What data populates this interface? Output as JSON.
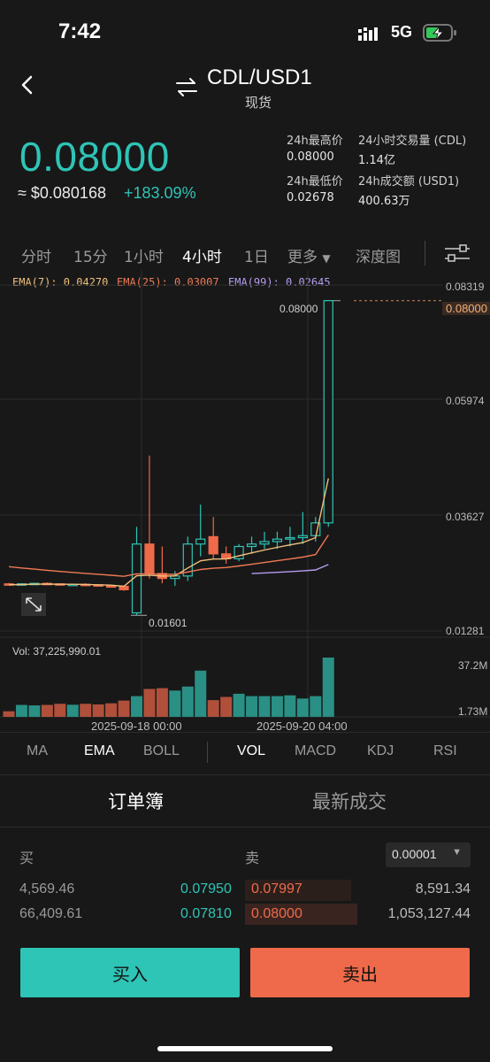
{
  "status": {
    "time": "7:42",
    "network": "5G"
  },
  "header": {
    "pair": "CDL/USD1",
    "market_type": "现货"
  },
  "price": {
    "last": "0.08000",
    "fiat": "≈ $0.080168",
    "change": "+183.09%"
  },
  "stats": {
    "high_label": "24h最高价",
    "high": "0.08000",
    "low_label": "24h最低价",
    "low": "0.02678",
    "vol_label": "24小时交易量 (CDL)",
    "vol": "1.14亿",
    "turnover_label": "24h成交额 (USD1)",
    "turnover": "400.63万"
  },
  "intervals": [
    "分时",
    "15分",
    "1小时",
    "4小时",
    "1日",
    "更多",
    "深度图"
  ],
  "active_interval": "4小时",
  "ema": {
    "ema7": "EMA(7): 0.04270",
    "ema25": "EMA(25): 0.03007",
    "ema99": "EMA(99): 0.02645"
  },
  "colors": {
    "up": "#2ec4b6",
    "down": "#ef6a4a",
    "ema7": "#f2c07d",
    "ema25": "#f07a55",
    "ema99": "#b69cf0"
  },
  "chart_data": {
    "type": "candlestick",
    "y_axis": {
      "ticks": [
        "0.08319",
        "0.05974",
        "0.03627",
        "0.01281"
      ],
      "min": 0.01281,
      "max": 0.08319
    },
    "current_price_tag": "0.08000",
    "max_label": "0.08000",
    "min_label": "0.01601",
    "x_ticks": [
      "2025-09-18 00:00",
      "2025-09-20 04:00"
    ],
    "volume": {
      "label": "Vol: 37,225,990.01",
      "max_tick": "37.2M",
      "min_tick": "1.73M"
    },
    "candles": [
      [
        0.0224,
        0.0226,
        0.0222,
        0.0223
      ],
      [
        0.0223,
        0.0225,
        0.0221,
        0.0224
      ],
      [
        0.0224,
        0.0226,
        0.0222,
        0.0225
      ],
      [
        0.0225,
        0.0227,
        0.0223,
        0.0224
      ],
      [
        0.0224,
        0.0225,
        0.0221,
        0.0222
      ],
      [
        0.0222,
        0.0224,
        0.022,
        0.0223
      ],
      [
        0.0223,
        0.0225,
        0.0221,
        0.0222
      ],
      [
        0.0222,
        0.0223,
        0.0219,
        0.022
      ],
      [
        0.022,
        0.0222,
        0.0218,
        0.0219
      ],
      [
        0.0219,
        0.022,
        0.021,
        0.0212
      ],
      [
        0.0165,
        0.034,
        0.016,
        0.0305
      ],
      [
        0.0305,
        0.0485,
        0.0235,
        0.0245
      ],
      [
        0.0245,
        0.03,
        0.0225,
        0.0235
      ],
      [
        0.0235,
        0.025,
        0.022,
        0.024
      ],
      [
        0.024,
        0.032,
        0.023,
        0.0305
      ],
      [
        0.0305,
        0.0385,
        0.028,
        0.0315
      ],
      [
        0.032,
        0.036,
        0.0275,
        0.0285
      ],
      [
        0.0285,
        0.03,
        0.0265,
        0.0275
      ],
      [
        0.0275,
        0.0305,
        0.027,
        0.03
      ],
      [
        0.03,
        0.032,
        0.0285,
        0.0305
      ],
      [
        0.0305,
        0.033,
        0.0295,
        0.031
      ],
      [
        0.031,
        0.033,
        0.0295,
        0.0315
      ],
      [
        0.0315,
        0.034,
        0.03,
        0.0318
      ],
      [
        0.0318,
        0.037,
        0.0305,
        0.0322
      ],
      [
        0.0322,
        0.036,
        0.031,
        0.0348
      ],
      [
        0.0348,
        0.08,
        0.034,
        0.08
      ]
    ],
    "volumes": [
      3.5,
      7.5,
      7.2,
      7.5,
      8.2,
      7.6,
      8.2,
      7.8,
      8.5,
      10.2,
      13.0,
      17.5,
      18.0,
      16.5,
      19.0,
      29.0,
      10.5,
      12.5,
      14.5,
      13.0,
      13.0,
      13.0,
      13.5,
      11.5,
      13.0,
      37.2
    ]
  },
  "indicators": [
    "MA",
    "EMA",
    "BOLL",
    "VOL",
    "MACD",
    "KDJ",
    "RSI"
  ],
  "active_indicators": [
    "EMA",
    "VOL"
  ],
  "orderbook": {
    "tabs": [
      "订单簿",
      "最新成交"
    ],
    "buy_label": "买",
    "sell_label": "卖",
    "precision": "0.00001",
    "rows": [
      {
        "bid_qty": "4,569.46",
        "bid": "0.07950",
        "ask": "0.07997",
        "ask_qty": "8,591.34"
      },
      {
        "bid_qty": "66,409.61",
        "bid": "0.07810",
        "ask": "0.08000",
        "ask_qty": "1,053,127.44"
      }
    ]
  },
  "actions": {
    "buy": "买入",
    "sell": "卖出"
  }
}
